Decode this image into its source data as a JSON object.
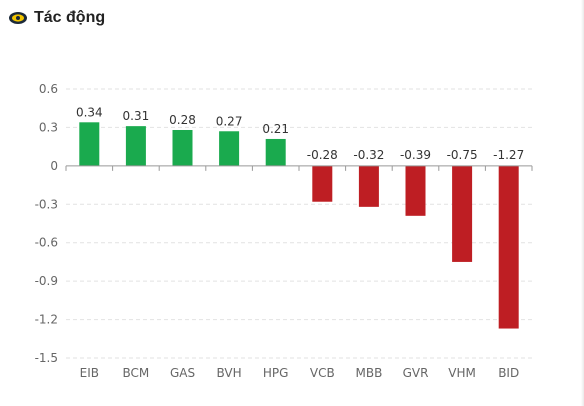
{
  "header": {
    "title": "Tác động",
    "icon": "impact-eye-icon"
  },
  "colors": {
    "positive": "#1aaa4e",
    "negative": "#be1e23",
    "grid": "#e2e2e2",
    "axis": "#999999",
    "icon_accent": "#f2c500",
    "icon_dark": "#1c2a3a"
  },
  "chart_data": {
    "type": "bar",
    "categories": [
      "EIB",
      "BCM",
      "GAS",
      "BVH",
      "HPG",
      "VCB",
      "MBB",
      "GVR",
      "VHM",
      "BID"
    ],
    "values": [
      0.34,
      0.31,
      0.28,
      0.27,
      0.21,
      -0.28,
      -0.32,
      -0.39,
      -0.75,
      -1.27
    ],
    "data_labels": [
      "0.34",
      "0.31",
      "0.28",
      "0.27",
      "0.21",
      "-0.28",
      "-0.32",
      "-0.39",
      "-0.75",
      "-1.27"
    ],
    "y_ticks": [
      0.6,
      0.3,
      0,
      -0.3,
      -0.6,
      -0.9,
      -1.2,
      -1.5
    ],
    "y_tick_labels": [
      "0.6",
      "0.3",
      "0",
      "-0.3",
      "-0.6",
      "-0.9",
      "-1.2",
      "-1.5"
    ],
    "ylim": [
      -1.5,
      0.6
    ],
    "grid": true,
    "legend": false,
    "xlabel": "",
    "ylabel": ""
  }
}
